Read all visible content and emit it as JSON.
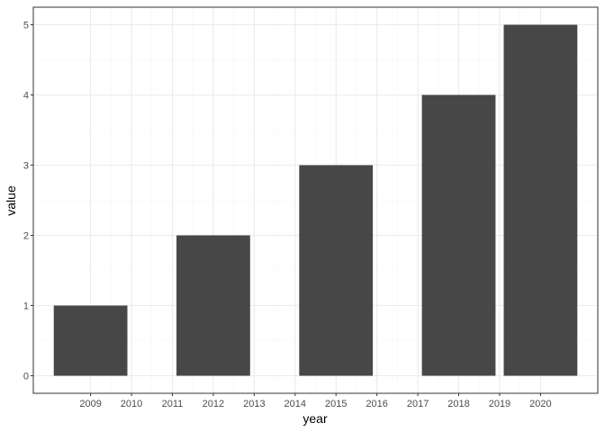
{
  "chart_data": {
    "type": "bar",
    "xlabel": "year",
    "ylabel": "value",
    "bars": [
      {
        "x": 2009,
        "value": 1
      },
      {
        "x": 2012,
        "value": 2
      },
      {
        "x": 2015,
        "value": 3
      },
      {
        "x": 2018,
        "value": 4
      },
      {
        "x": 2020,
        "value": 5
      }
    ],
    "bar_width_years": 1.8,
    "x_ticks": [
      2009,
      2010,
      2011,
      2012,
      2013,
      2014,
      2015,
      2016,
      2017,
      2018,
      2019,
      2020
    ],
    "xlim": [
      2007.6,
      2021.4
    ],
    "y_ticks": [
      0,
      1,
      2,
      3,
      4,
      5
    ],
    "ylim": [
      -0.25,
      5.25
    ],
    "grid": true,
    "colors": {
      "bar": "#474747",
      "grid_major": "#ebebeb",
      "grid_minor": "#f5f5f5",
      "panel_border": "#333333",
      "tick_text": "#4d4d4d"
    }
  }
}
